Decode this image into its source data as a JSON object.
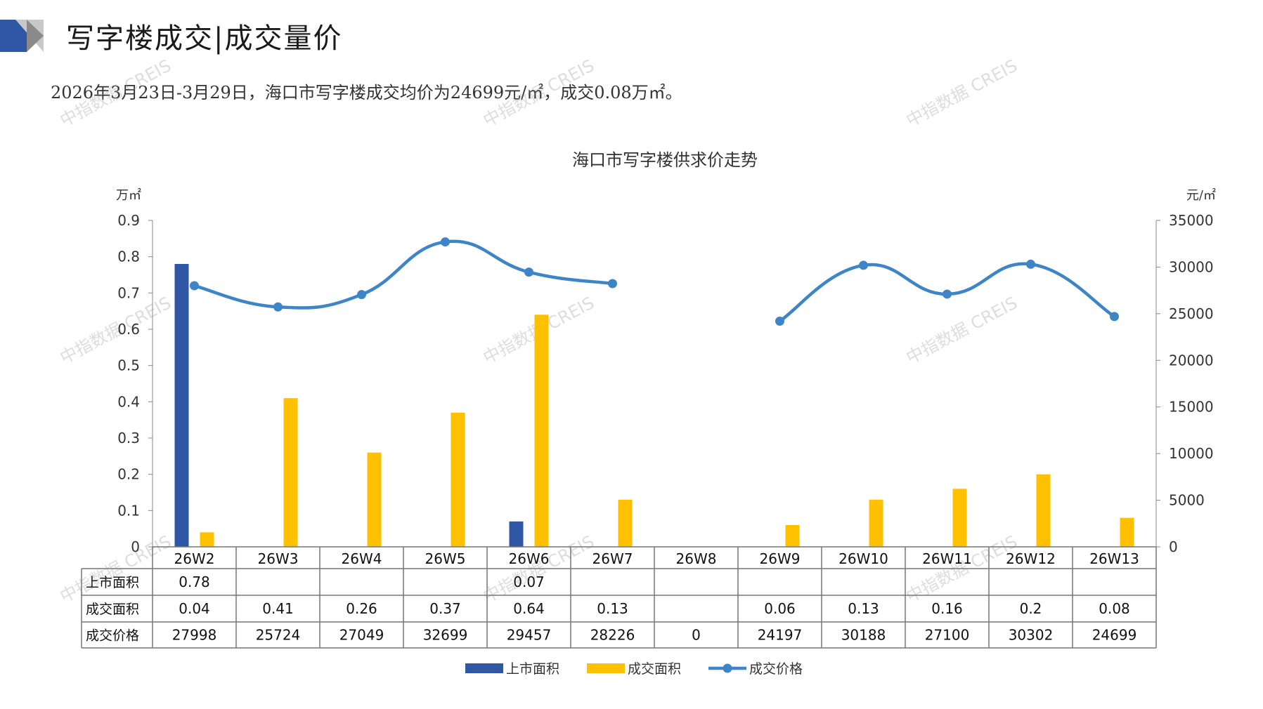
{
  "page": {
    "title": "写字楼成交|成交量价",
    "summary": "2026年3月23日-3月29日，海口市写字楼成交均价为24699元/㎡，成交0.08万㎡。",
    "watermark_text": "中指数据 CREIS",
    "accent_colors": {
      "navy": "#2f57a6",
      "gray": "#c8c8c8",
      "gold": "#ffc000",
      "line_blue": "#3d85c6"
    }
  },
  "chart_data": {
    "type": "bar",
    "title": "海口市写字楼供求价走势",
    "y_left_unit": "万㎡",
    "y_right_unit": "元/㎡",
    "y_left_lim": [
      0,
      0.9
    ],
    "y_left_ticks": [
      "0",
      "0.1",
      "0.2",
      "0.3",
      "0.4",
      "0.5",
      "0.6",
      "0.7",
      "0.8",
      "0.9"
    ],
    "y_right_lim": [
      0,
      35000
    ],
    "y_right_ticks": [
      "0",
      "5000",
      "10000",
      "15000",
      "20000",
      "25000",
      "30000",
      "35000"
    ],
    "categories": [
      "26W2",
      "26W3",
      "26W4",
      "26W5",
      "26W6",
      "26W7",
      "26W8",
      "26W9",
      "26W10",
      "26W11",
      "26W12",
      "26W13"
    ],
    "series": [
      {
        "name": "上市面积",
        "type": "bar",
        "axis": "left",
        "color": "#2f57a6",
        "values": [
          0.78,
          null,
          null,
          null,
          0.07,
          null,
          null,
          null,
          null,
          null,
          null,
          null
        ],
        "labels": [
          "0.78",
          "",
          "",
          "",
          "0.07",
          "",
          "",
          "",
          "",
          "",
          "",
          ""
        ]
      },
      {
        "name": "成交面积",
        "type": "bar",
        "axis": "left",
        "color": "#ffc000",
        "values": [
          0.04,
          0.41,
          0.26,
          0.37,
          0.64,
          0.13,
          null,
          0.06,
          0.13,
          0.16,
          0.2,
          0.08
        ],
        "labels": [
          "0.04",
          "0.41",
          "0.26",
          "0.37",
          "0.64",
          "0.13",
          "",
          "0.06",
          "0.13",
          "0.16",
          "0.2",
          "0.08"
        ]
      },
      {
        "name": "成交价格",
        "type": "line",
        "axis": "right",
        "color": "#3d85c6",
        "values": [
          27998,
          25724,
          27049,
          32699,
          29457,
          28226,
          0,
          24197,
          30188,
          27100,
          30302,
          24699
        ],
        "labels": [
          "27998",
          "25724",
          "27049",
          "32699",
          "29457",
          "28226",
          "0",
          "24197",
          "30188",
          "27100",
          "30302",
          "24699"
        ]
      }
    ],
    "legend_position": "bottom",
    "data_table": true
  }
}
